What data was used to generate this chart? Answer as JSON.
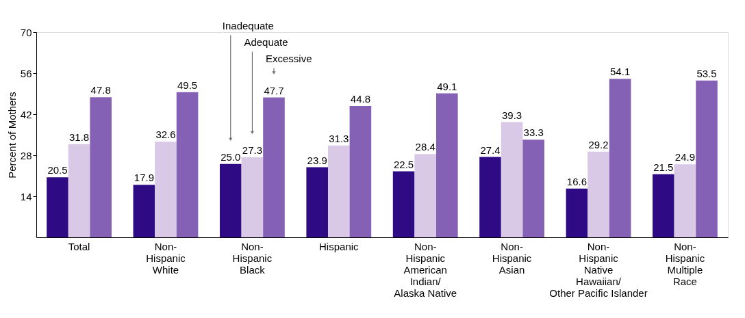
{
  "chart_data": {
    "type": "bar",
    "ylabel": "Percent of Mothers",
    "categories": [
      "Total",
      "Non-\nHispanic\nWhite",
      "Non-\nHispanic\nBlack",
      "Hispanic",
      "Non-\nHispanic\nAmerican\nIndian/\nAlaska Native",
      "Non-\nHispanic\nAsian",
      "Non-\nHispanic\nNative\nHawaiian/\nOther Pacific Islander",
      "Non-\nHispanic\nMultiple\nRace"
    ],
    "series": [
      {
        "color": "#2e0a85",
        "values": [
          20.5,
          17.9,
          25.0,
          23.9,
          22.5,
          27.4,
          16.6,
          21.5
        ],
        "value_labels": [
          "20.5",
          "17.9",
          "25.0",
          "23.9",
          "22.5",
          "27.4",
          "16.6",
          "21.5"
        ]
      },
      {
        "color": "#d9c8e6",
        "values": [
          31.8,
          32.6,
          27.3,
          31.3,
          28.4,
          39.3,
          29.2,
          24.9
        ],
        "value_labels": [
          "31.8",
          "32.6",
          "27.3",
          "31.3",
          "28.4",
          "39.3",
          "29.2",
          "24.9"
        ]
      },
      {
        "color": "#8561b5",
        "values": [
          47.8,
          49.5,
          47.7,
          44.8,
          49.1,
          33.3,
          54.1,
          53.5
        ],
        "value_labels": [
          "47.8",
          "49.5",
          "47.7",
          "44.8",
          "49.1",
          "33.3",
          "54.1",
          "53.5"
        ]
      }
    ],
    "annotations": [
      "Inadequate",
      "Adequate",
      "Excessive"
    ],
    "ylim": [
      0,
      70
    ],
    "yticks": [
      14,
      28,
      42,
      56,
      70
    ],
    "grid": false,
    "legend": false
  }
}
